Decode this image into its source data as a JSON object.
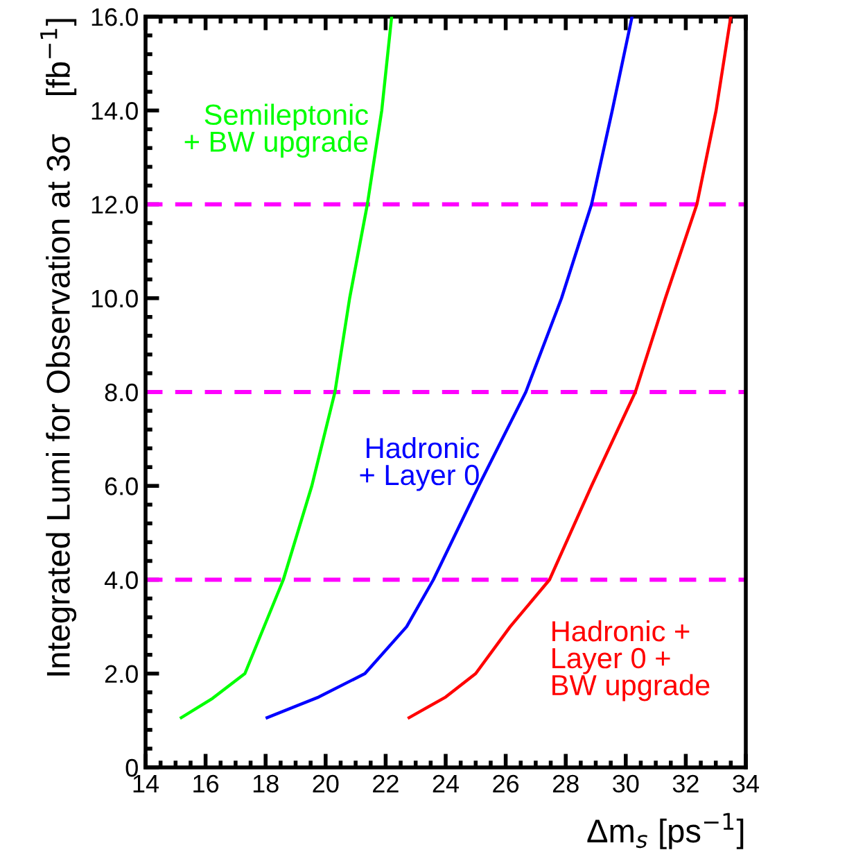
{
  "chart_data": {
    "type": "line",
    "xlabel": "Δm$_{s}$ [ps$^{−1}$]",
    "ylabel": "Integrated Lumi for Observation at 3σ    [fb$^{−1}$]",
    "xlim": [
      14,
      34
    ],
    "xticks": [
      14,
      16,
      18,
      20,
      22,
      24,
      26,
      28,
      30,
      32,
      34
    ],
    "ylim": [
      0,
      16
    ],
    "yticks": [
      0,
      {
        "value": 2,
        "label": "2.0"
      },
      {
        "value": 4,
        "label": "4.0"
      },
      {
        "value": 6,
        "label": "6.0"
      },
      {
        "value": 8,
        "label": "8.0"
      },
      {
        "value": 10,
        "label": "10.0"
      },
      {
        "value": 12,
        "label": "12.0"
      },
      {
        "value": 14,
        "label": "14.0"
      },
      {
        "value": 16,
        "label": "16.0"
      }
    ],
    "grid": false,
    "legend": false,
    "marker": "none",
    "line_style": "solid",
    "series": [
      {
        "name": "Semileptonic\n+ BW upgrade",
        "color": "#00ff00",
        "x": [
          15.19,
          16.23,
          17.31,
          18.59,
          19.54,
          20.31,
          20.8,
          21.39,
          21.87,
          22.2
        ],
        "values": [
          1.06,
          1.47,
          2.0,
          4.0,
          6.0,
          8.0,
          10.0,
          12.0,
          14.0,
          16.0
        ]
      },
      {
        "name": "Hadronic\n+ Layer 0",
        "color": "#0000ff",
        "x": [
          18.05,
          19.77,
          21.31,
          22.7,
          23.59,
          25.1,
          26.67,
          27.86,
          28.86,
          29.55,
          30.21
        ],
        "values": [
          1.06,
          1.5,
          2.0,
          3.0,
          4.0,
          6.0,
          8.0,
          10.0,
          12.0,
          14.0,
          16.0
        ]
      },
      {
        "name": "Hadronic +\nLayer 0 +\nBW upgrade",
        "color": "#ff0000",
        "x": [
          22.78,
          24.0,
          25.0,
          26.15,
          27.46,
          28.86,
          30.32,
          31.32,
          32.37,
          33.01,
          33.5
        ],
        "values": [
          1.06,
          1.5,
          2.0,
          3.0,
          4.0,
          6.0,
          8.0,
          10.0,
          12.0,
          14.0,
          16.0
        ]
      }
    ],
    "ref_lines": [
      {
        "axis": "y",
        "value": 4,
        "color": "#ff00ff",
        "line_style": "dashed"
      },
      {
        "axis": "y",
        "value": 8,
        "color": "#ff00ff",
        "line_style": "dashed"
      },
      {
        "axis": "y",
        "value": 12,
        "color": "#ff00ff",
        "line_style": "dashed"
      }
    ]
  }
}
